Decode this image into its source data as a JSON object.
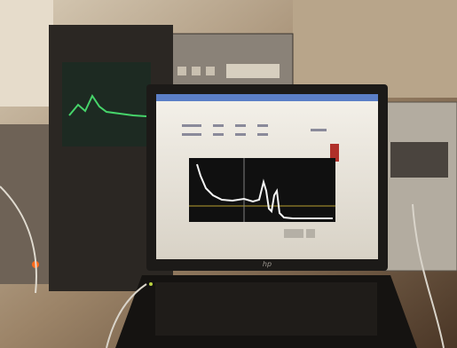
{
  "laptop": {
    "logo": "hp"
  }
}
